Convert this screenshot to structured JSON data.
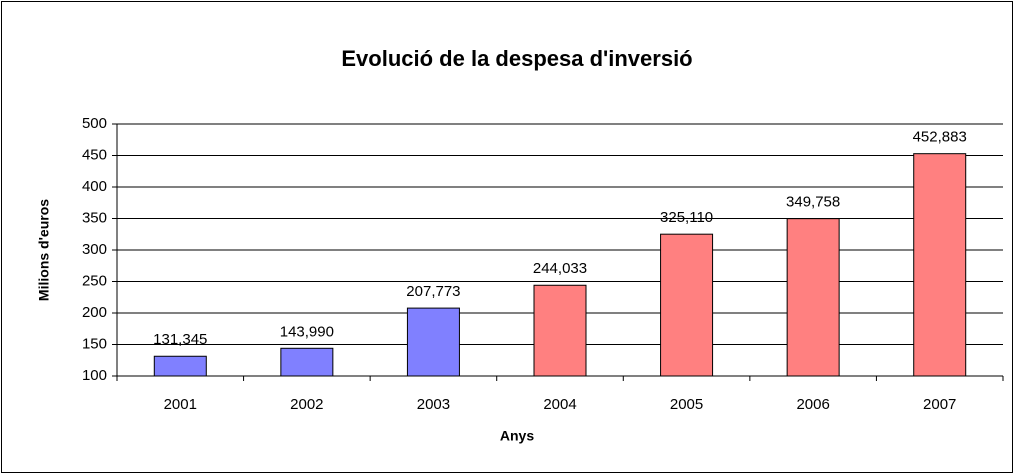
{
  "chart_data": {
    "type": "bar",
    "title": "Evolució de la despesa d'inversió",
    "x_label": "Anys",
    "y_label": "Milions d'euros",
    "categories": [
      "2001",
      "2002",
      "2003",
      "2004",
      "2005",
      "2006",
      "2007"
    ],
    "values": [
      131.345,
      143.99,
      207.773,
      244.033,
      325.11,
      349.758,
      452.883
    ],
    "value_labels": [
      "131,345",
      "143,990",
      "207,773",
      "244,033",
      "325,110",
      "349,758",
      "452,883"
    ],
    "colors": [
      "#8080ff",
      "#8080ff",
      "#8080ff",
      "#ff8080",
      "#ff8080",
      "#ff8080",
      "#ff8080"
    ],
    "ylim": [
      100,
      500
    ],
    "yticks": [
      100,
      150,
      200,
      250,
      300,
      350,
      400,
      450,
      500
    ],
    "grid": true
  }
}
